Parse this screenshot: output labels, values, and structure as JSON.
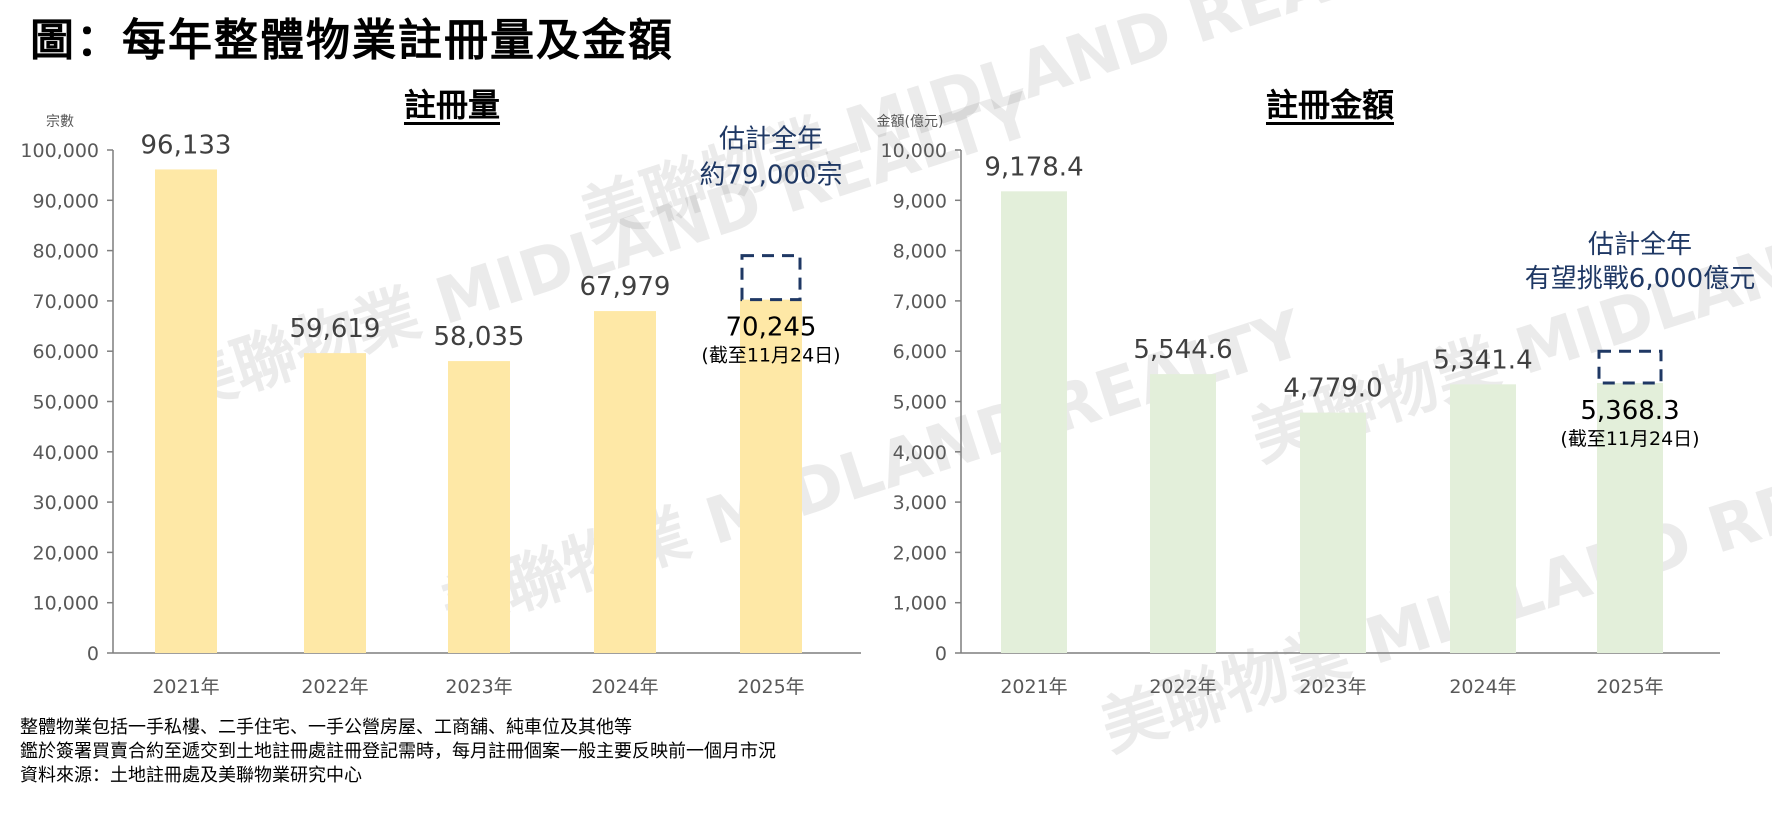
{
  "title": "圖：每年整體物業註冊量及金額",
  "watermark": "美聯物業 MIDLAND REALTY",
  "colors": {
    "volume_bar": "#FEE8A6",
    "amount_bar": "#E3EFDA",
    "annotation": "#1F3864",
    "axis": "#7F7F7F"
  },
  "chart_data": [
    {
      "type": "bar",
      "title": "註冊量",
      "ylabel": "宗數",
      "ylim": [
        0,
        100000
      ],
      "yticks": [
        0,
        10000,
        20000,
        30000,
        40000,
        50000,
        60000,
        70000,
        80000,
        90000,
        100000
      ],
      "ytick_labels": [
        "0",
        "10,000",
        "20,000",
        "30,000",
        "40,000",
        "50,000",
        "60,000",
        "70,000",
        "80,000",
        "90,000",
        "100,000"
      ],
      "categories": [
        "2021年",
        "2022年",
        "2023年",
        "2024年",
        "2025年"
      ],
      "values": [
        96133,
        59619,
        58035,
        67979,
        70245
      ],
      "data_labels": [
        "96,133",
        "59,619",
        "58,035",
        "67,979",
        "70,245"
      ],
      "estimate": {
        "value": 79000,
        "line1": "估計全年",
        "line2": "約79,000宗"
      },
      "partial_note": "(截至11月24日)"
    },
    {
      "type": "bar",
      "title": "註冊金額",
      "ylabel": "金額(億元)",
      "ylim": [
        0,
        10000
      ],
      "yticks": [
        0,
        1000,
        2000,
        3000,
        4000,
        5000,
        6000,
        7000,
        8000,
        9000,
        10000
      ],
      "ytick_labels": [
        "0",
        "1,000",
        "2,000",
        "3,000",
        "4,000",
        "5,000",
        "6,000",
        "7,000",
        "8,000",
        "9,000",
        "10,000"
      ],
      "categories": [
        "2021年",
        "2022年",
        "2023年",
        "2024年",
        "2025年"
      ],
      "values": [
        9178.4,
        5544.6,
        4779.0,
        5341.4,
        5368.3
      ],
      "data_labels": [
        "9,178.4",
        "5,544.6",
        "4,779.0",
        "5,341.4",
        "5,368.3"
      ],
      "estimate": {
        "value": 6000,
        "line1": "估計全年",
        "line2": "有望挑戰6,000億元"
      },
      "partial_note": "(截至11月24日)"
    }
  ],
  "notes": [
    "整體物業包括一手私樓、二手住宅、一手公營房屋、工商舖、純車位及其他等",
    "鑑於簽署買賣合約至遞交到土地註冊處註冊登記需時，每月註冊個案一般主要反映前一個月市況",
    "資料來源：土地註冊處及美聯物業研究中心"
  ]
}
